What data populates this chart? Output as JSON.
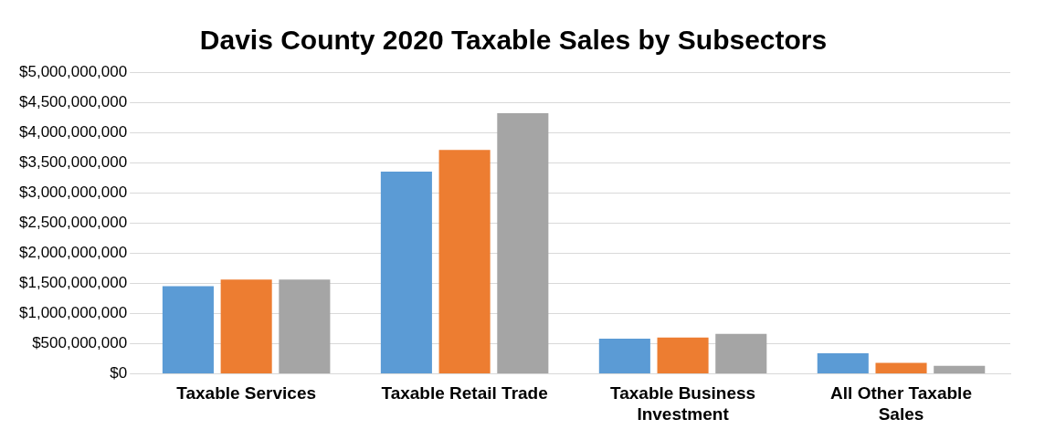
{
  "chart_data": {
    "type": "bar",
    "title": "Davis County 2020 Taxable Sales by Subsectors",
    "categories": [
      "Taxable Services",
      "Taxable Retail Trade",
      "Taxable Business Investment",
      "All Other Taxable Sales"
    ],
    "series": [
      {
        "color": "#5b9bd5",
        "values": [
          1450000000,
          3350000000,
          580000000,
          340000000
        ]
      },
      {
        "color": "#ed7d31",
        "values": [
          1560000000,
          3710000000,
          600000000,
          180000000
        ]
      },
      {
        "color": "#a5a5a5",
        "values": [
          1560000000,
          4320000000,
          660000000,
          130000000
        ]
      }
    ],
    "ylim": [
      0,
      5000000000
    ],
    "yticks": [
      {
        "value": 0,
        "label": "$0"
      },
      {
        "value": 500000000,
        "label": "$500,000,000"
      },
      {
        "value": 1000000000,
        "label": "$1,000,000,000"
      },
      {
        "value": 1500000000,
        "label": "$1,500,000,000"
      },
      {
        "value": 2000000000,
        "label": "$2,000,000,000"
      },
      {
        "value": 2500000000,
        "label": "$2,500,000,000"
      },
      {
        "value": 3000000000,
        "label": "$3,000,000,000"
      },
      {
        "value": 3500000000,
        "label": "$3,500,000,000"
      },
      {
        "value": 4000000000,
        "label": "$4,000,000,000"
      },
      {
        "value": 4500000000,
        "label": "$4,500,000,000"
      },
      {
        "value": 5000000000,
        "label": "$5,000,000,000"
      }
    ],
    "grid": "y",
    "legend": false
  }
}
